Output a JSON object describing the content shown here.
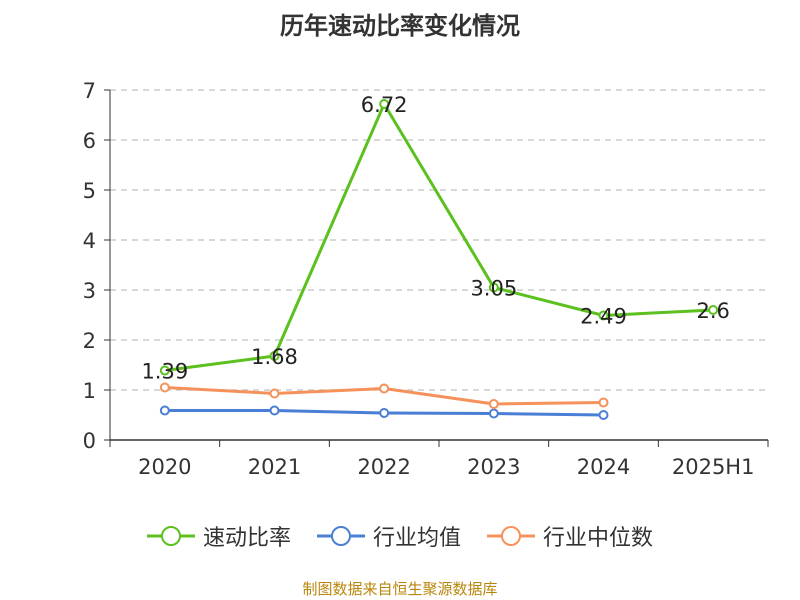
{
  "source": "制图数据来自恒生聚源数据库",
  "chart_data": {
    "type": "line",
    "title": "历年速动比率变化情况",
    "categories": [
      "2020",
      "2021",
      "2022",
      "2023",
      "2024",
      "2025H1"
    ],
    "ylim": [
      0,
      7
    ],
    "yticks": [
      0,
      1,
      2,
      3,
      4,
      5,
      6,
      7
    ],
    "grid": "horizontal-dashed",
    "legend_position": "bottom",
    "series": [
      {
        "name": "速动比率",
        "color": "#5cc01e",
        "values": [
          1.39,
          1.68,
          6.72,
          3.05,
          2.49,
          2.6
        ],
        "labels": [
          "1.39",
          "1.68",
          "6.72",
          "3.05",
          "2.49",
          "2.6"
        ]
      },
      {
        "name": "行业均值",
        "color": "#4a7fd6",
        "values": [
          0.59,
          0.59,
          0.54,
          0.53,
          0.5,
          null
        ]
      },
      {
        "name": "行业中位数",
        "color": "#f5915a",
        "values": [
          1.05,
          0.93,
          1.03,
          0.72,
          0.75,
          null
        ]
      }
    ]
  }
}
